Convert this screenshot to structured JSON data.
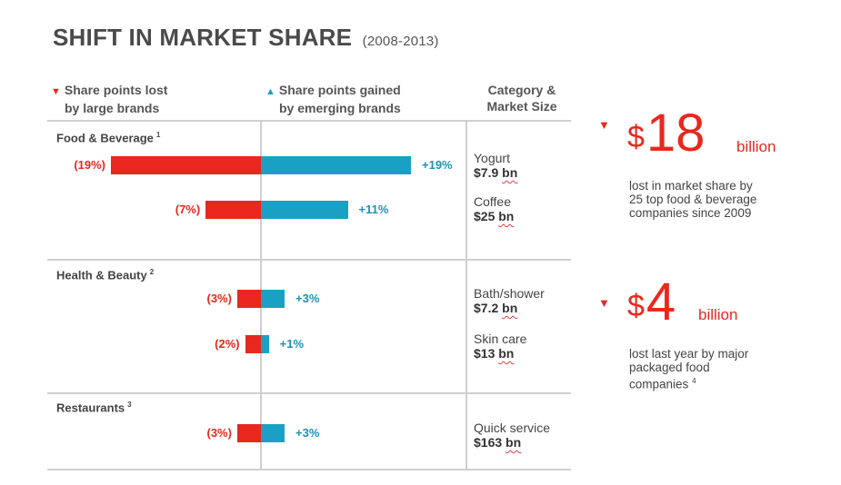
{
  "header": {
    "title": "SHIFT IN MARKET SHARE",
    "period": "(2008-2013)"
  },
  "legend": {
    "lost_line1": "Share points lost",
    "lost_line2": "by large brands",
    "gained_line1": "Share points gained",
    "gained_line2": "by emerging brands",
    "category_line1": "Category &",
    "category_line2": "Market Size"
  },
  "colors": {
    "lost": "#e8281e",
    "gained": "#1aa0c4",
    "divider": "#cfcfcf"
  },
  "chart_data": {
    "type": "bar",
    "axis_scale_max": 19,
    "groups": [
      {
        "name": "Food & Beverage",
        "footnote": "1",
        "rows": [
          {
            "category": "Yogurt",
            "market_size": "$7.9",
            "lost": 19,
            "gained": 19,
            "lost_label": "(19%)",
            "gained_label": "+19%"
          },
          {
            "category": "Coffee",
            "market_size": "$25",
            "lost": 7,
            "gained": 11,
            "lost_label": "(7%)",
            "gained_label": "+11%"
          }
        ]
      },
      {
        "name": "Health & Beauty",
        "footnote": "2",
        "rows": [
          {
            "category": "Bath/shower",
            "market_size": "$7.2",
            "lost": 3,
            "gained": 3,
            "lost_label": "(3%)",
            "gained_label": "+3%"
          },
          {
            "category": "Skin care",
            "market_size": "$13",
            "lost": 2,
            "gained": 1,
            "lost_label": "(2%)",
            "gained_label": "+1%"
          }
        ]
      },
      {
        "name": "Restaurants",
        "footnote": "3",
        "rows": [
          {
            "category": "Quick service",
            "market_size": "$163",
            "lost": 3,
            "gained": 3,
            "lost_label": "(3%)",
            "gained_label": "+3%"
          }
        ]
      }
    ],
    "size_unit": "bn"
  },
  "stats": [
    {
      "amount": "18",
      "unit": "billion",
      "line1": "lost in market share by",
      "line2": "25 top food & beverage",
      "line3": "companies since 2009",
      "footnote": ""
    },
    {
      "amount": "4",
      "unit": "billion",
      "line1": "lost last year by major",
      "line2": "packaged food",
      "line3": "companies",
      "footnote": "4"
    }
  ]
}
